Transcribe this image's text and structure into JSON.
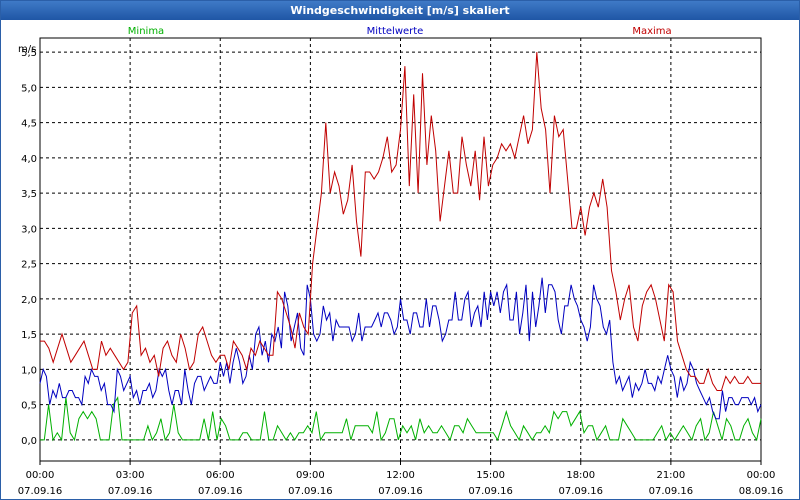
{
  "window": {
    "title": "Windgeschwindigkeit [m/s] skaliert"
  },
  "colors": {
    "min": "#00b000",
    "avg": "#0000c0",
    "max": "#c00000",
    "titlebar": "#2b5fa8"
  },
  "chart_data": {
    "type": "line",
    "title": "Windgeschwindigkeit [m/s] skaliert",
    "ylabel": "m/s",
    "xlabel": "",
    "ylim": [
      -0.3,
      5.7
    ],
    "xlim": [
      0,
      24
    ],
    "grid": true,
    "legend_placement": "top",
    "y_ticks": [
      "0,0",
      "0,5",
      "1,0",
      "1,5",
      "2,0",
      "2,5",
      "3,0",
      "3,5",
      "4,0",
      "4,5",
      "5,0",
      "5,5"
    ],
    "x_ticks": [
      {
        "time": "00:00",
        "date": "07.09.16"
      },
      {
        "time": "03:00",
        "date": "07.09.16"
      },
      {
        "time": "06:00",
        "date": "07.09.16"
      },
      {
        "time": "09:00",
        "date": "07.09.16"
      },
      {
        "time": "12:00",
        "date": "07.09.16"
      },
      {
        "time": "15:00",
        "date": "07.09.16"
      },
      {
        "time": "18:00",
        "date": "07.09.16"
      },
      {
        "time": "21:00",
        "date": "07.09.16"
      },
      {
        "time": "00:00",
        "date": "08.09.16"
      }
    ],
    "series": [
      {
        "name": "Minima",
        "color": "#00b000",
        "values": [
          0,
          0,
          0.5,
          0,
          0.1,
          0,
          0.6,
          0.1,
          0,
          0.3,
          0.4,
          0.3,
          0.4,
          0.3,
          0,
          0,
          0,
          0.5,
          0.6,
          0,
          0,
          0,
          0,
          0,
          0,
          0.2,
          0,
          0.1,
          0.3,
          0,
          0.1,
          0.5,
          0.1,
          0,
          0,
          0,
          0,
          0,
          0.3,
          0,
          0.4,
          0,
          0.3,
          0.2,
          0,
          0,
          0,
          0.1,
          0.1,
          0,
          0,
          0,
          0.4,
          0,
          0,
          0.2,
          0.1,
          0,
          0.1,
          0,
          0.1,
          0.1,
          0.2,
          0.1,
          0.4,
          0,
          0.1,
          0.1,
          0.1,
          0.1,
          0.1,
          0.3,
          0,
          0.2,
          0.2,
          0.2,
          0.2,
          0.1,
          0.4,
          0,
          0.1,
          0.3,
          0.3,
          0,
          0.2,
          0.1,
          0.2,
          0,
          0.3,
          0.1,
          0.2,
          0.1,
          0.1,
          0.2,
          0.1,
          0,
          0.2,
          0.2,
          0.1,
          0.3,
          0.2,
          0.1,
          0.1,
          0.1,
          0.1,
          0.1,
          0,
          0.2,
          0.4,
          0.2,
          0.1,
          0,
          0.2,
          0.1,
          0,
          0.1,
          0.1,
          0.2,
          0.1,
          0.4,
          0.3,
          0.4,
          0.4,
          0.2,
          0.3,
          0.4,
          0.1,
          0.2,
          0.2,
          0,
          0.1,
          0.2,
          0,
          0,
          0,
          0.3,
          0.2,
          0.1,
          0,
          0,
          0,
          0,
          0,
          0.1,
          0.2,
          0,
          0.1,
          0,
          0.1,
          0.2,
          0.1,
          0,
          0.2,
          0.3,
          0,
          0.1,
          0.4,
          0.2,
          0,
          0.3,
          0.2,
          0,
          0,
          0.2,
          0.3,
          0.1,
          0,
          0.3
        ]
      },
      {
        "name": "Mittelwerte",
        "color": "#0000c0",
        "values": [
          0.8,
          1,
          0.9,
          0.5,
          0.7,
          0.6,
          0.8,
          0.6,
          0.6,
          0.7,
          0.7,
          0.6,
          0.6,
          0.5,
          0.9,
          0.8,
          1,
          0.9,
          0.9,
          0.7,
          0.8,
          0.5,
          0.5,
          0.4,
          1,
          0.9,
          0.7,
          0.8,
          0.9,
          0.6,
          0.7,
          0.5,
          0.7,
          0.7,
          0.8,
          0.6,
          0.7,
          1,
          0.9,
          1,
          0.7,
          0.5,
          0.7,
          0.7,
          0.5,
          1,
          0.7,
          0.5,
          0.8,
          0.9,
          0.9,
          0.7,
          0.8,
          0.9,
          0.8,
          0.8,
          1.1,
          0.9,
          1.1,
          0.8,
          1.1,
          1.3,
          1.1,
          0.8,
          0.9,
          1.2,
          1,
          1.5,
          1.6,
          1.2,
          1.4,
          1.1,
          1.5,
          1.4,
          1.6,
          1.3,
          2.1,
          1.9,
          1.4,
          1.6,
          1.8,
          1.3,
          1.2,
          2.2,
          2,
          1.5,
          1.4,
          1.5,
          1.9,
          1.7,
          1.8,
          1.4,
          1.7,
          1.6,
          1.6,
          1.6,
          1.6,
          1.4,
          1.5,
          1.8,
          1.4,
          1.6,
          1.6,
          1.6,
          1.7,
          1.8,
          1.6,
          1.8,
          1.8,
          1.7,
          1.5,
          1.6,
          2,
          1.7,
          1.7,
          1.5,
          1.8,
          1.8,
          1.6,
          1.6,
          2,
          1.6,
          1.9,
          1.9,
          1.7,
          1.4,
          1.5,
          1.7,
          1.7,
          2.1,
          1.7,
          1.7,
          2,
          2.1,
          1.6,
          1.8,
          1.9,
          1.6,
          2.1,
          1.7,
          2.1,
          1.9,
          2.1,
          1.8,
          2.1,
          2.2,
          1.7,
          1.7,
          2.1,
          1.5,
          1.8,
          2.2,
          1.4,
          2.1,
          1.6,
          1.9,
          2.3,
          1.8,
          2.2,
          2.2,
          2.1,
          1.7,
          1.5,
          1.9,
          1.9,
          2.2,
          2,
          1.9,
          1.7,
          1.6,
          1.4,
          1.6,
          2.2,
          2,
          1.9,
          1.6,
          1.5,
          1.7,
          1.1,
          0.8,
          0.9,
          0.7,
          0.8,
          0.9,
          0.6,
          0.8,
          0.7,
          0.8,
          1,
          0.8,
          0.8,
          0.7,
          0.9,
          0.8,
          1,
          1.2,
          1,
          0.9,
          0.6,
          0.9,
          0.7,
          0.8,
          1.1,
          1,
          0.8,
          0.7,
          0.6,
          0.5,
          0.6,
          0.4,
          0.3,
          0.3,
          0.7,
          0.4,
          0.6,
          0.6,
          0.5,
          0.5,
          0.6,
          0.6,
          0.6,
          0.5,
          0.6,
          0.4,
          0.5
        ]
      },
      {
        "name": "Maxima",
        "color": "#c00000",
        "values": [
          1.4,
          1.4,
          1.3,
          1.1,
          1.3,
          1.5,
          1.3,
          1.1,
          1.2,
          1.3,
          1.4,
          1.2,
          1,
          1,
          1.4,
          1.2,
          1.3,
          1.2,
          1.1,
          1,
          1.1,
          1.8,
          1.9,
          1.2,
          1.3,
          1.1,
          1.2,
          0.9,
          1.3,
          1.4,
          1.2,
          1.1,
          1.5,
          1.3,
          1,
          1.1,
          1.5,
          1.6,
          1.4,
          1.2,
          1.1,
          1.2,
          1.2,
          1,
          1.4,
          1.3,
          1.2,
          1,
          1.3,
          1.2,
          1.4,
          1.3,
          1.2,
          1.2,
          2.1,
          2,
          1.8,
          1.6,
          1.3,
          1.8,
          1.6,
          1.5,
          2.5,
          3,
          3.5,
          4.5,
          3.5,
          3.8,
          3.6,
          3.2,
          3.4,
          3.9,
          3.1,
          2.6,
          3.8,
          3.8,
          3.7,
          3.8,
          4,
          4.3,
          3.8,
          3.9,
          4.4,
          5.3,
          3.6,
          4.9,
          3.5,
          5.2,
          3.9,
          4.6,
          4.1,
          3.1,
          3.6,
          4.1,
          3.5,
          3.5,
          4.3,
          3.9,
          3.6,
          4.1,
          3.4,
          4.3,
          3.6,
          3.9,
          4,
          4.2,
          4.1,
          4.2,
          4,
          4.3,
          4.6,
          4.2,
          4.4,
          5.5,
          4.7,
          4.4,
          3.5,
          4.6,
          4.3,
          4.4,
          3.7,
          3,
          3,
          3.3,
          2.9,
          3.3,
          3.5,
          3.3,
          3.7,
          3.3,
          2.4,
          2.1,
          1.7,
          2,
          2.2,
          1.6,
          1.4,
          1.9,
          2.1,
          2.2,
          2,
          1.7,
          1.4,
          2.2,
          2.1,
          1.4,
          1.2,
          1.0,
          0.9,
          0.9,
          0.8,
          0.8,
          1.0,
          0.8,
          0.7,
          0.7,
          0.9,
          0.8,
          0.9,
          0.8,
          0.8,
          0.9,
          0.8,
          0.8,
          0.8
        ]
      }
    ],
    "legend": [
      "Minima",
      "Mittelwerte",
      "Maxima"
    ]
  }
}
